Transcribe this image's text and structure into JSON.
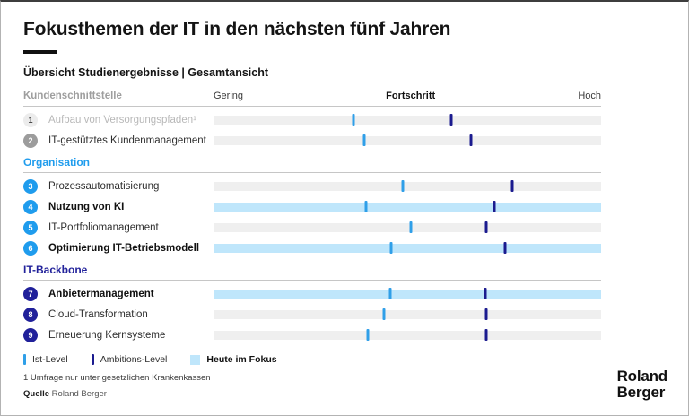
{
  "header": {
    "title": "Fokusthemen der IT in den nächsten fünf Jahren",
    "subtitle": "Übersicht Studienergebnisse | Gesamtansicht"
  },
  "axis": {
    "low": "Gering",
    "mid": "Fortschritt",
    "high": "Hoch"
  },
  "sections": [
    {
      "title": "Kundenschnittstelle",
      "rows": [
        {
          "num": "1",
          "label": "Aufbau von Versorgungspfaden¹",
          "ist": 36.1,
          "amb": 61.3
        },
        {
          "num": "2",
          "label": "IT-gestütztes Kundenmanagement",
          "ist": 38.9,
          "amb": 66.4
        }
      ]
    },
    {
      "title": "Organisation",
      "rows": [
        {
          "num": "3",
          "label": "Prozessautomatisierung",
          "ist": 48.8,
          "amb": 77.1
        },
        {
          "num": "4",
          "label": "Nutzung von KI",
          "ist": 39.4,
          "amb": 72.5
        },
        {
          "num": "5",
          "label": "IT-Portfoliomanagement",
          "ist": 50.9,
          "amb": 70.4
        },
        {
          "num": "6",
          "label": "Optimierung IT-Betriebsmodell",
          "ist": 45.8,
          "amb": 75.2
        }
      ]
    },
    {
      "title": "IT-Backbone",
      "rows": [
        {
          "num": "7",
          "label": "Anbietermanagement",
          "ist": 45.6,
          "amb": 70.1
        },
        {
          "num": "8",
          "label": "Cloud-Transformation",
          "ist": 44.0,
          "amb": 70.4
        },
        {
          "num": "9",
          "label": "Erneuerung Kernsysteme",
          "ist": 39.8,
          "amb": 70.4
        }
      ]
    }
  ],
  "legend": {
    "ist": "Ist-Level",
    "amb": "Ambitions-Level",
    "fokus": "Heute im Fokus"
  },
  "footnote": "1 Umfrage nur unter gesetzlichen Krankenkassen",
  "source": {
    "label": "Quelle",
    "value": " Roland Berger"
  },
  "logo": {
    "line1": "Roland",
    "line2": "Berger"
  },
  "colors": {
    "brand_blue": "#1f9ced",
    "navy": "#20209a",
    "highlight_blue": "#bfe6fb",
    "ist_tick": "#2f9fe8",
    "ambitions_tick": "#1b1b8f",
    "track_gray": "#efefef",
    "muted_gray": "#9e9e9e"
  },
  "chart_data": {
    "type": "scatter",
    "title": "Fokusthemen der IT in den nächsten fünf Jahren",
    "subtitle": "Übersicht Studienergebnisse | Gesamtansicht",
    "x_axis": {
      "label": "Fortschritt",
      "min_label": "Gering",
      "max_label": "Hoch",
      "range": [
        0,
        100
      ],
      "grid": false
    },
    "groups": [
      "Kundenschnittstelle",
      "Organisation",
      "IT-Backbone"
    ],
    "categories": [
      "Aufbau von Versorgungspfaden¹",
      "IT-gestütztes Kundenmanagement",
      "Prozessautomatisierung",
      "Nutzung von KI",
      "IT-Portfoliomanagement",
      "Optimierung IT-Betriebsmodell",
      "Anbietermanagement",
      "Cloud-Transformation",
      "Erneuerung Kernsysteme"
    ],
    "category_group": [
      0,
      0,
      1,
      1,
      1,
      1,
      2,
      2,
      2
    ],
    "series": [
      {
        "name": "Ist-Level",
        "values": [
          36.1,
          38.9,
          48.8,
          39.4,
          50.9,
          45.8,
          45.6,
          44.0,
          39.8
        ]
      },
      {
        "name": "Ambitions-Level",
        "values": [
          61.3,
          66.4,
          77.1,
          72.5,
          70.4,
          75.2,
          70.1,
          70.4,
          70.4
        ]
      }
    ],
    "highlighted_today": [
      "Nutzung von KI",
      "Optimierung IT-Betriebsmodell",
      "Anbietermanagement"
    ],
    "legend_position": "bottom",
    "footnote": "1 Umfrage nur unter gesetzlichen Krankenkassen",
    "source": "Roland Berger"
  }
}
